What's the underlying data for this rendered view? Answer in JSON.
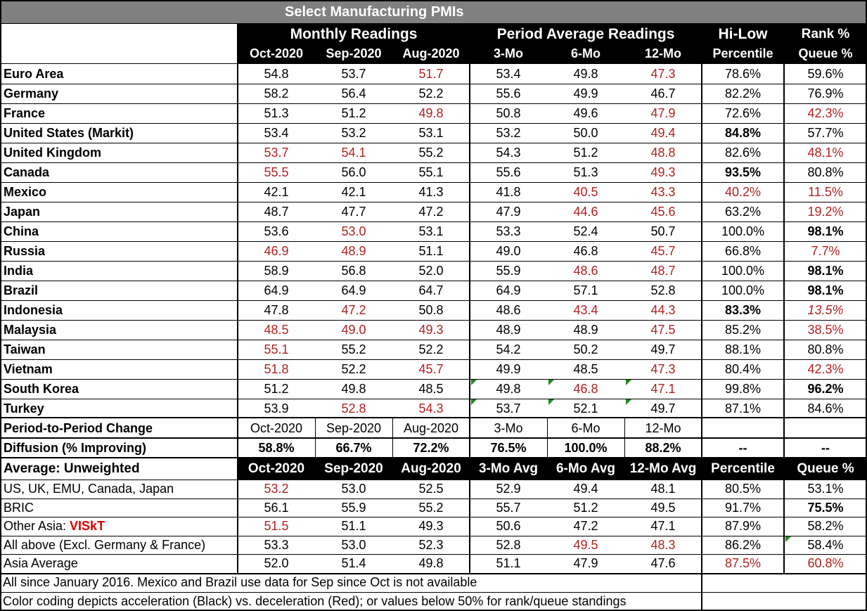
{
  "title": "Select Manufacturing PMIs",
  "header": {
    "group_monthly": "Monthly Readings",
    "group_period": "Period Average Readings",
    "group_hilow": "Hi-Low",
    "group_rank": "Rank %",
    "columns": [
      "Oct-2020",
      "Sep-2020",
      "Aug-2020",
      "3-Mo",
      "6-Mo",
      "12-Mo",
      "Percentile",
      "Queue %"
    ]
  },
  "rows": [
    {
      "label": "Euro Area",
      "values": [
        "54.8",
        "53.7",
        "51.7",
        "53.4",
        "49.8",
        "47.3",
        "78.6%",
        "59.6%"
      ]
    },
    {
      "label": " Germany",
      "values": [
        "58.2",
        "56.4",
        "52.2",
        "55.6",
        "49.9",
        "46.7",
        "82.2%",
        "76.9%"
      ]
    },
    {
      "label": " France",
      "values": [
        "51.3",
        "51.2",
        "49.8",
        "50.8",
        "49.6",
        "47.9",
        "72.6%",
        "42.3%"
      ]
    },
    {
      "label": "United States (Markit)",
      "values": [
        "53.4",
        "53.2",
        "53.1",
        "53.2",
        "50.0",
        "49.4",
        "84.8%",
        "57.7%"
      ]
    },
    {
      "label": "United Kingdom",
      "values": [
        "53.7",
        "54.1",
        "55.2",
        "54.3",
        "51.2",
        "48.8",
        "82.6%",
        "48.1%"
      ]
    },
    {
      "label": "Canada",
      "values": [
        "55.5",
        "56.0",
        "55.1",
        "55.6",
        "51.3",
        "49.3",
        "93.5%",
        "80.8%"
      ]
    },
    {
      "label": "Mexico",
      "values": [
        "42.1",
        "42.1",
        "41.3",
        "41.8",
        "40.5",
        "43.3",
        "40.2%",
        "11.5%"
      ]
    },
    {
      "label": "Japan",
      "values": [
        "48.7",
        "47.7",
        "47.2",
        "47.9",
        "44.6",
        "45.6",
        "63.2%",
        "19.2%"
      ]
    },
    {
      "label": "China",
      "values": [
        "53.6",
        "53.0",
        "53.1",
        "53.3",
        "52.4",
        "50.7",
        "100.0%",
        "98.1%"
      ]
    },
    {
      "label": "Russia",
      "values": [
        "46.9",
        "48.9",
        "51.1",
        "49.0",
        "46.8",
        "45.7",
        "66.8%",
        "7.7%"
      ]
    },
    {
      "label": "India",
      "values": [
        "58.9",
        "56.8",
        "52.0",
        "55.9",
        "48.6",
        "48.7",
        "100.0%",
        "98.1%"
      ]
    },
    {
      "label": "Brazil",
      "values": [
        "64.9",
        "64.9",
        "64.7",
        "64.9",
        "57.1",
        "52.8",
        "100.0%",
        "98.1%"
      ]
    },
    {
      "label": "Indonesia",
      "values": [
        "47.8",
        "47.2",
        "50.8",
        "48.6",
        "43.4",
        "44.3",
        "83.3%",
        "13.5%"
      ]
    },
    {
      "label": "Malaysia",
      "values": [
        "48.5",
        "49.0",
        "49.3",
        "48.9",
        "48.9",
        "47.5",
        "85.2%",
        "38.5%"
      ]
    },
    {
      "label": "Taiwan",
      "values": [
        "55.1",
        "55.2",
        "52.2",
        "54.2",
        "50.2",
        "49.7",
        "88.1%",
        "80.8%"
      ]
    },
    {
      "label": "Vietnam",
      "values": [
        "51.8",
        "52.2",
        "45.7",
        "49.9",
        "48.5",
        "47.3",
        "80.4%",
        "42.3%"
      ]
    },
    {
      "label": "South Korea",
      "values": [
        "51.2",
        "49.8",
        "48.5",
        "49.8",
        "46.8",
        "47.1",
        "99.8%",
        "96.2%"
      ]
    },
    {
      "label": "Turkey",
      "values": [
        "53.9",
        "52.8",
        "54.3",
        "53.7",
        "52.1",
        "49.7",
        "87.1%",
        "84.6%"
      ]
    }
  ],
  "change_row": {
    "label": "Period-to-Period Change",
    "values": [
      "Oct-2020",
      "Sep-2020",
      "Aug-2020",
      "3-Mo",
      "6-Mo",
      "12-Mo",
      "",
      ""
    ]
  },
  "diffusion_row": {
    "label": "Diffusion (% Improving)",
    "values": [
      "58.8%",
      "66.7%",
      "72.2%",
      "76.5%",
      "100.0%",
      "88.2%",
      "--",
      "--"
    ]
  },
  "avg_header": {
    "label": "Average: Unweighted",
    "columns": [
      "Oct-2020",
      "Sep-2020",
      "Aug-2020",
      "3-Mo Avg",
      "6-Mo Avg",
      "12-Mo Avg",
      "Percentile",
      "Queue %"
    ]
  },
  "avg_rows": [
    {
      "label": "US, UK, EMU, Canada, Japan",
      "values": [
        "53.2",
        "53.0",
        "52.5",
        "52.9",
        "49.4",
        "48.1",
        "80.5%",
        "53.1%"
      ]
    },
    {
      "label": "BRIC",
      "values": [
        "56.1",
        "55.9",
        "55.2",
        "55.7",
        "51.2",
        "49.5",
        "91.7%",
        "75.5%"
      ]
    },
    {
      "label": "Other Asia: ",
      "label_suffix": "VISkT",
      "values": [
        "51.5",
        "51.1",
        "49.3",
        "50.6",
        "47.2",
        "47.1",
        "87.9%",
        "58.2%"
      ]
    },
    {
      "label": " All above (Excl. Germany & France)",
      "values": [
        "53.3",
        "53.0",
        "52.3",
        "52.8",
        "49.5",
        "48.3",
        "86.2%",
        "58.4%"
      ]
    },
    {
      "label": "Asia Average",
      "values": [
        "52.0",
        "51.4",
        "49.8",
        "51.1",
        "47.9",
        "47.6",
        "87.5%",
        "60.8%"
      ]
    }
  ],
  "notes": [
    "All since January 2016. Mexico and Brazil use data for Sep since Oct is not available",
    "Color coding depicts acceleration (Black) vs. deceleration (Red); or values below 50% for rank/queue standings"
  ],
  "colors": {
    "red": "#b22222",
    "accent_label": "#e00000",
    "header_bg": "#000000",
    "title_bg": "#808080",
    "tick": "#1f8a1f"
  },
  "styles": {
    "rows": [
      {
        "red": [
          2,
          5
        ],
        "bold": []
      },
      {
        "red": [],
        "bold": []
      },
      {
        "red": [
          2,
          5,
          7
        ],
        "bold": []
      },
      {
        "red": [
          5
        ],
        "bold": [
          6
        ]
      },
      {
        "red": [
          0,
          1,
          5,
          7
        ],
        "bold": []
      },
      {
        "red": [
          0,
          5
        ],
        "bold": [
          6
        ]
      },
      {
        "red": [
          4,
          5,
          6,
          7
        ],
        "bold": []
      },
      {
        "red": [
          4,
          5,
          7
        ],
        "bold": []
      },
      {
        "red": [
          1
        ],
        "bold": [
          7
        ]
      },
      {
        "red": [
          0,
          1,
          5,
          7
        ],
        "bold": []
      },
      {
        "red": [
          4,
          5
        ],
        "bold": [
          7
        ]
      },
      {
        "red": [],
        "bold": [
          7
        ]
      },
      {
        "red": [
          1,
          4,
          5,
          7
        ],
        "bold": [
          6
        ],
        "italic": [
          7
        ]
      },
      {
        "red": [
          0,
          1,
          2,
          5,
          7
        ],
        "bold": []
      },
      {
        "red": [
          0
        ],
        "bold": []
      },
      {
        "red": [
          0,
          2,
          5,
          7
        ],
        "bold": []
      },
      {
        "red": [
          4,
          5
        ],
        "bold": [
          7
        ]
      },
      {
        "red": [
          1,
          2
        ],
        "bold": []
      }
    ],
    "avg_rows": [
      {
        "red": [
          0
        ],
        "bold": []
      },
      {
        "red": [],
        "bold": [
          7
        ]
      },
      {
        "red": [
          0
        ],
        "bold": []
      },
      {
        "red": [
          4,
          5
        ],
        "bold": []
      },
      {
        "red": [
          6,
          7
        ],
        "bold": []
      }
    ]
  }
}
